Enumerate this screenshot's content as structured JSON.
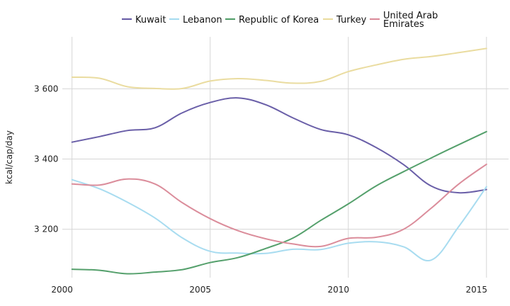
{
  "chart_data": {
    "type": "line",
    "title": "",
    "xlabel": "",
    "ylabel": "kcal/cap/day",
    "x": [
      2000,
      2001,
      2002,
      2003,
      2004,
      2005,
      2006,
      2007,
      2008,
      2009,
      2010,
      2011,
      2012,
      2013,
      2014,
      2015
    ],
    "xlim": [
      1999.65,
      2015.8
    ],
    "ylim": [
      3062,
      3748
    ],
    "xticks": [
      2000,
      2005,
      2010,
      2015
    ],
    "xtick_labels": [
      "2000",
      "2005",
      "2010",
      "2015"
    ],
    "yticks": [
      3200,
      3400,
      3600
    ],
    "ytick_labels": [
      "3 200",
      "3 400",
      "3 600"
    ],
    "grid": true,
    "legend_position": "top",
    "series": [
      {
        "name": "Kuwait",
        "color": "#6a5fa8",
        "values": [
          3448,
          3464,
          3481,
          3489,
          3532,
          3561,
          3574,
          3555,
          3517,
          3484,
          3469,
          3433,
          3384,
          3323,
          3304,
          3313
        ]
      },
      {
        "name": "Lebanon",
        "color": "#a8dcf0",
        "values": [
          3341,
          3315,
          3277,
          3232,
          3175,
          3137,
          3132,
          3131,
          3143,
          3142,
          3160,
          3164,
          3150,
          3112,
          3208,
          3321
        ]
      },
      {
        "name": "Republic of Korea",
        "color": "#55a06c",
        "values": [
          3086,
          3083,
          3073,
          3078,
          3085,
          3105,
          3119,
          3145,
          3175,
          3225,
          3272,
          3323,
          3364,
          3403,
          3441,
          3478
        ]
      },
      {
        "name": "Turkey",
        "color": "#eadca0",
        "values": [
          3633,
          3630,
          3606,
          3601,
          3601,
          3622,
          3629,
          3624,
          3616,
          3621,
          3649,
          3668,
          3684,
          3692,
          3703,
          3715
        ]
      },
      {
        "name": "United Arab Emirates",
        "color": "#db8d9b",
        "values": [
          3329,
          3326,
          3343,
          3329,
          3275,
          3230,
          3196,
          3173,
          3158,
          3151,
          3174,
          3177,
          3200,
          3260,
          3329,
          3385
        ]
      }
    ]
  }
}
